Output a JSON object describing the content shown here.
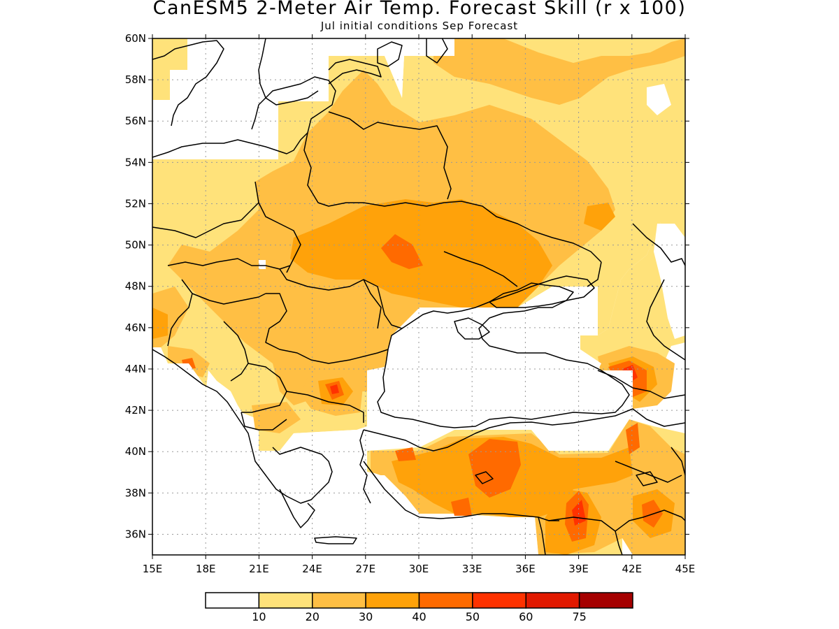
{
  "title": "CanESM5 2-Meter Air Temp. Forecast Skill (r x 100)",
  "subtitle": "Jul initial conditions  Sep Forecast",
  "map": {
    "lon_range": [
      15,
      45
    ],
    "lat_range": [
      35,
      60
    ],
    "lat_ticks": [
      "36N",
      "38N",
      "40N",
      "42N",
      "44N",
      "46N",
      "48N",
      "50N",
      "52N",
      "54N",
      "56N",
      "58N",
      "60N"
    ],
    "lon_ticks": [
      "15E",
      "18E",
      "21E",
      "24E",
      "27E",
      "30E",
      "33E",
      "36E",
      "39E",
      "42E",
      "45E"
    ],
    "gridlines": "dotted"
  },
  "colorbar": {
    "colors": [
      "#ffffff",
      "#ffe27a",
      "#ffbf44",
      "#ffa20a",
      "#ff6a00",
      "#ff3200",
      "#e11900",
      "#a50000"
    ],
    "labels": [
      "10",
      "20",
      "30",
      "40",
      "50",
      "60",
      "75"
    ]
  }
}
